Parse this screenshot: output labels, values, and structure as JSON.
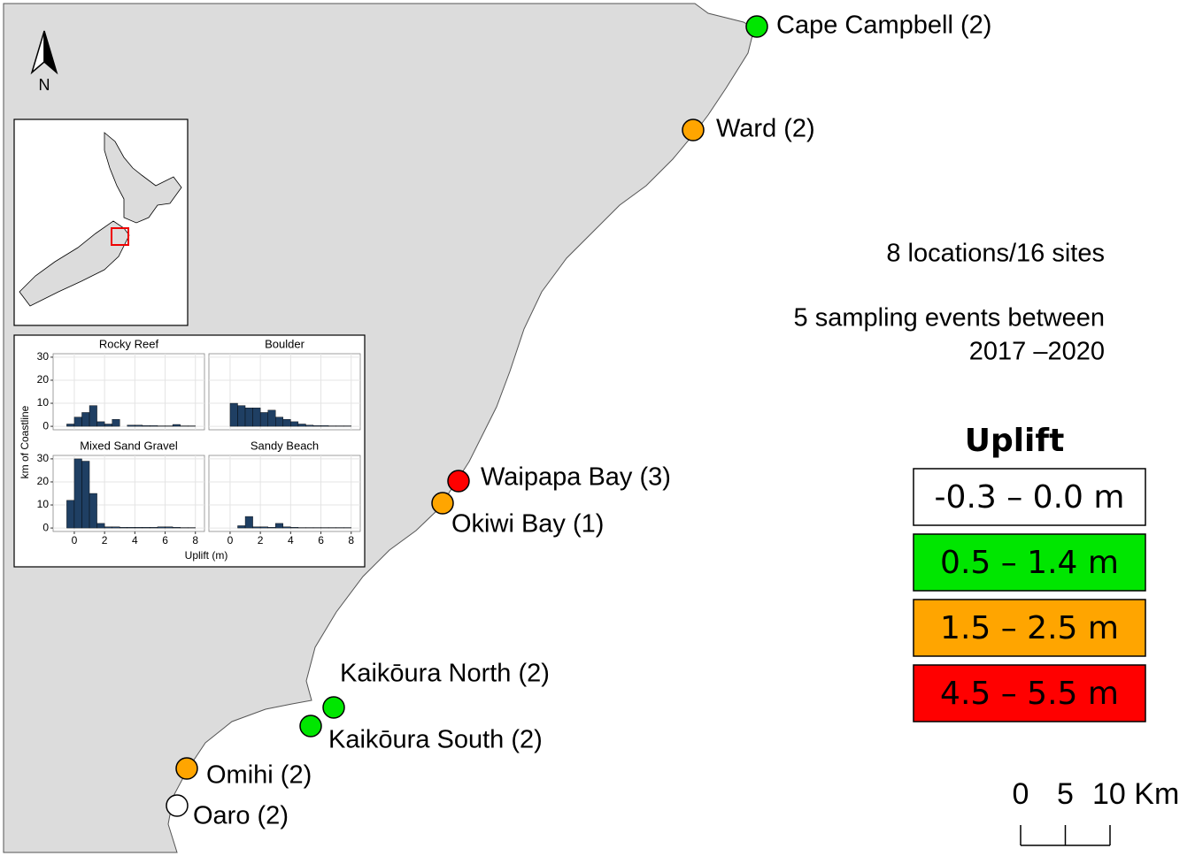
{
  "map": {
    "north": "N",
    "notes": [
      "8 locations/16 sites",
      "5 sampling events between",
      "2017 –2020"
    ],
    "sites": [
      {
        "name": "Cape Campbell (2)",
        "color": "#00e600"
      },
      {
        "name": "Ward (2)",
        "color": "#ffa500"
      },
      {
        "name": "Waipapa Bay (3)",
        "color": "#ff0000"
      },
      {
        "name": "Okiwi Bay (1)",
        "color": "#ffa500"
      },
      {
        "name": "Kaikōura North (2)",
        "color": "#00e600"
      },
      {
        "name": "Kaikōura South (2)",
        "color": "#00e600"
      },
      {
        "name": "Omihi (2)",
        "color": "#ffa500"
      },
      {
        "name": "Oaro (2)",
        "color": "#ffffff"
      }
    ],
    "legend": {
      "title": "Uplift",
      "items": [
        {
          "label": "-0.3 – 0.0 m",
          "color": "#ffffff"
        },
        {
          "label": "0.5 – 1.4 m",
          "color": "#00e600"
        },
        {
          "label": "1.5 – 2.5 m",
          "color": "#ffa500"
        },
        {
          "label": "4.5 – 5.5 m",
          "color": "#ff0000"
        }
      ]
    },
    "scale_bar": {
      "ticks": [
        0,
        5,
        {
          "value": 10,
          "label": "10 Km"
        }
      ]
    }
  },
  "inset_labels": {
    "x_label": "Uplift (m)",
    "y_label": "km of Coastline"
  },
  "chart_data": [
    {
      "type": "histogram",
      "title": "Rocky Reef",
      "color": "#1f3f63",
      "bins": [
        -1,
        -0.5,
        0,
        0.5,
        1,
        1.5,
        2,
        2.5,
        3,
        3.5,
        4,
        4.5,
        5,
        5.5,
        6,
        6.5,
        7,
        7.5,
        8
      ],
      "values": [
        0,
        1,
        4,
        6,
        9,
        2,
        1,
        3,
        0,
        0.5,
        0.5,
        0.3,
        0.3,
        0.2,
        0.2,
        0.8,
        0.2,
        0.2
      ],
      "xlim": [
        -1.4,
        8.6
      ],
      "ylim": [
        -1.5,
        31.5
      ],
      "xticks": [
        0,
        2,
        4,
        6,
        8
      ],
      "yticks": [
        0,
        10,
        20,
        30
      ],
      "grid": true
    },
    {
      "type": "histogram",
      "title": "Boulder",
      "color": "#1f3f63",
      "bins": [
        -1,
        -0.5,
        0,
        0.5,
        1,
        1.5,
        2,
        2.5,
        3,
        3.5,
        4,
        4.5,
        5,
        5.5,
        6,
        6.5,
        7,
        7.5,
        8
      ],
      "values": [
        0,
        0,
        10,
        9,
        8,
        8,
        6,
        7,
        4,
        3,
        2,
        1,
        0.5,
        0.3,
        0.3,
        0.2,
        0.2,
        0.2
      ],
      "xlim": [
        -1.4,
        8.6
      ],
      "ylim": [
        -1.5,
        31.5
      ],
      "xticks": [
        0,
        2,
        4,
        6,
        8
      ],
      "yticks": [
        0,
        10,
        20,
        30
      ],
      "grid": true
    },
    {
      "type": "histogram",
      "title": "Mixed Sand Gravel",
      "color": "#1f3f63",
      "bins": [
        -1,
        -0.5,
        0,
        0.5,
        1,
        1.5,
        2,
        2.5,
        3,
        3.5,
        4,
        4.5,
        5,
        5.5,
        6,
        6.5,
        7,
        7.5,
        8
      ],
      "values": [
        0,
        12,
        30,
        29,
        15,
        2,
        0.5,
        0.5,
        0.3,
        0.3,
        0.3,
        0.3,
        0.3,
        0.5,
        0.5,
        0.3,
        0.2,
        0.2
      ],
      "xlim": [
        -1.4,
        8.6
      ],
      "ylim": [
        -1.5,
        31.5
      ],
      "xticks": [
        0,
        2,
        4,
        6,
        8
      ],
      "yticks": [
        0,
        10,
        20,
        30
      ],
      "grid": true
    },
    {
      "type": "histogram",
      "title": "Sandy Beach",
      "color": "#1f3f63",
      "bins": [
        -1,
        -0.5,
        0,
        0.5,
        1,
        1.5,
        2,
        2.5,
        3,
        3.5,
        4,
        4.5,
        5,
        5.5,
        6,
        6.5,
        7,
        7.5,
        8
      ],
      "values": [
        0,
        0,
        0,
        1,
        5,
        0.5,
        0.5,
        0.3,
        2,
        0.5,
        0.3,
        0.2,
        0.2,
        0.2,
        0.2,
        0.2,
        0.2,
        0.2
      ],
      "xlim": [
        -1.4,
        8.6
      ],
      "ylim": [
        -1.5,
        31.5
      ],
      "xticks": [
        0,
        2,
        4,
        6,
        8
      ],
      "yticks": [
        0,
        10,
        20,
        30
      ],
      "grid": true
    }
  ]
}
